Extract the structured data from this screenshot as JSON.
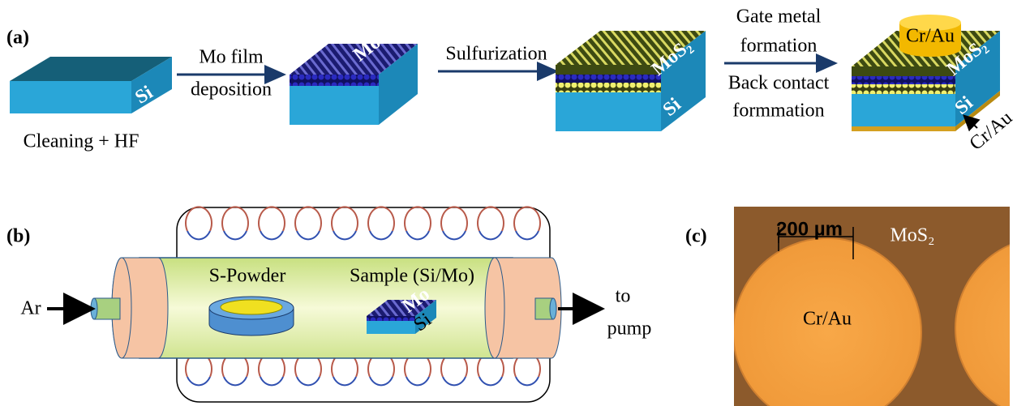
{
  "panel_a": {
    "label": "(a)",
    "step1": {
      "block_label": "Si",
      "caption": "Cleaning + HF"
    },
    "arrow1": {
      "line1": "Mo film",
      "line2": "deposition"
    },
    "step2": {
      "block_label": "Mo"
    },
    "arrow2": {
      "label": "Sulfurization"
    },
    "step3": {
      "top_label": "MoS₂",
      "block_label": "Si"
    },
    "arrow3": {
      "line1": "Gate metal",
      "line2": "formation",
      "line3": "Back contact",
      "line4": "formmation"
    },
    "step4": {
      "gate_label": "Cr/Au",
      "top_label": "MoS₂",
      "block_label": "Si",
      "back_label": "Cr/Au"
    }
  },
  "panel_b": {
    "label": "(b)",
    "powder_label": "S-Powder",
    "sample_label": "Sample (Si/Mo)",
    "sample_top": "Mo",
    "sample_base": "Si",
    "inlet_label": "Ar",
    "outlet_line1": "to",
    "outlet_line2": "pump"
  },
  "panel_c": {
    "label": "(c)",
    "scale_bar": "200 µm",
    "background_label": "MoS₂",
    "dot_label": "Cr/Au"
  }
}
